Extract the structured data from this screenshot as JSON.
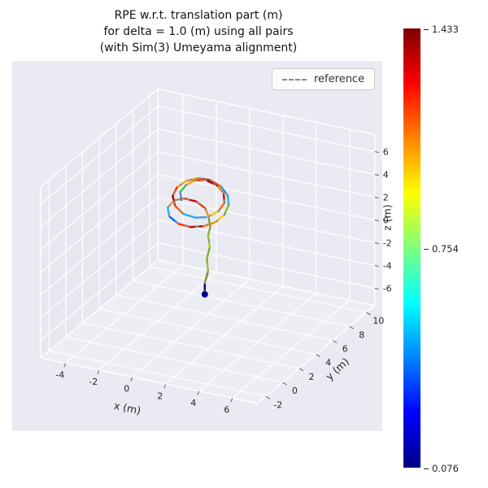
{
  "figure": {
    "background": "#ffffff",
    "axes_background": "#eaeaf2",
    "title_lines": [
      "RPE w.r.t. translation part (m)",
      "for delta = 1.0 (m) using all pairs",
      "(with Sim(3) Umeyama alignment)"
    ],
    "legend": {
      "items": [
        {
          "label": "reference",
          "line_style": "dashed",
          "color": "#8c8c8c"
        }
      ]
    },
    "axes": {
      "x": {
        "label": "x (m)",
        "ticks": [
          -4,
          -2,
          0,
          2,
          4,
          6
        ]
      },
      "y": {
        "label": "y (m)",
        "ticks": [
          -2,
          0,
          2,
          4,
          6,
          8,
          10
        ]
      },
      "z": {
        "label": "z (m)",
        "ticks": [
          6,
          4,
          2,
          0,
          -2,
          -4,
          -6
        ]
      }
    },
    "colorbar": {
      "colormap": "jet",
      "max_label": "1.433",
      "mid_label": "0.754",
      "min_label": "0.076"
    }
  },
  "chart_data": {
    "type": "line",
    "subtype": "3d-trajectory-colored-by-error",
    "title": "RPE w.r.t. translation part (m) for delta = 1.0 (m) using all pairs (with Sim(3) Umeyama alignment)",
    "xlabel": "x (m)",
    "ylabel": "y (m)",
    "zlabel": "z (m)",
    "xlim": [
      -5.5,
      7.5
    ],
    "ylim": [
      -3,
      11
    ],
    "zlim": [
      -7.5,
      7.5
    ],
    "xticks": [
      -4,
      -2,
      0,
      2,
      4,
      6
    ],
    "yticks": [
      -2,
      0,
      2,
      4,
      6,
      8,
      10
    ],
    "zticks": [
      -6,
      -4,
      -2,
      0,
      2,
      4,
      6
    ],
    "grid": true,
    "legend_position": "upper right",
    "error_range": {
      "min": 0.076,
      "mid": 0.754,
      "max": 1.433
    },
    "colormap_stops_top_to_bottom": [
      "#7f0000",
      "#ff0000",
      "#ff8400",
      "#ffff00",
      "#7dff7d",
      "#00ffff",
      "#0084ff",
      "#0000ff",
      "#000084"
    ],
    "series": [
      {
        "name": "estimate_colored_by_rpe",
        "points": [
          [
            0.55,
            4.55,
            -4.7
          ],
          [
            0.5,
            4.65,
            -3.8
          ],
          [
            0.62,
            4.8,
            -2.8
          ],
          [
            0.5,
            4.9,
            -1.8
          ],
          [
            0.62,
            5.0,
            -0.8
          ],
          [
            0.5,
            5.05,
            0.1
          ],
          [
            0.6,
            5.1,
            0.9
          ],
          [
            0.45,
            5.2,
            1.7
          ],
          [
            0.2,
            5.3,
            2.3
          ],
          [
            -0.3,
            5.2,
            2.8
          ],
          [
            -0.9,
            5.0,
            3.0
          ],
          [
            -1.4,
            4.8,
            2.8
          ],
          [
            -1.7,
            4.6,
            2.2
          ],
          [
            -1.5,
            4.4,
            1.6
          ],
          [
            -0.9,
            4.3,
            1.2
          ],
          [
            -0.2,
            4.35,
            1.1
          ],
          [
            0.5,
            4.5,
            1.3
          ],
          [
            1.1,
            4.7,
            1.7
          ],
          [
            1.5,
            5.0,
            2.3
          ],
          [
            1.6,
            5.3,
            3.0
          ],
          [
            1.4,
            5.6,
            3.6
          ],
          [
            0.9,
            5.8,
            4.1
          ],
          [
            0.2,
            5.9,
            4.4
          ],
          [
            -0.5,
            5.8,
            4.4
          ],
          [
            -1.1,
            5.6,
            4.1
          ],
          [
            -1.5,
            5.3,
            3.6
          ],
          [
            -1.6,
            5.0,
            3.0
          ],
          [
            -1.3,
            4.7,
            2.4
          ],
          [
            -0.7,
            4.5,
            2.0
          ],
          [
            0.0,
            4.5,
            1.9
          ],
          [
            0.7,
            4.6,
            2.1
          ],
          [
            1.2,
            4.9,
            2.6
          ],
          [
            1.4,
            5.2,
            3.2
          ],
          [
            1.2,
            5.5,
            3.8
          ],
          [
            0.7,
            5.7,
            4.2
          ],
          [
            0.0,
            5.75,
            4.45
          ],
          [
            -0.6,
            5.6,
            4.3
          ],
          [
            -1.0,
            5.4,
            3.9
          ],
          [
            -1.2,
            5.1,
            3.4
          ],
          [
            -1.0,
            4.85,
            2.9
          ]
        ],
        "segment_colors": [
          "#00008b",
          "#6b8e23",
          "#9acd32",
          "#76c000",
          "#a6d608",
          "#8fbc1f",
          "#65b300",
          "#ff8c00",
          "#e63900",
          "#cc0000",
          "#ff6600",
          "#ffa500",
          "#00bfff",
          "#0066ff",
          "#ff3300",
          "#b30000",
          "#ff7f00",
          "#ffd000",
          "#7ccc00",
          "#00ced1",
          "#1e90ff",
          "#ff4500",
          "#c21807",
          "#ff8c00",
          "#ffb000",
          "#ff2d00",
          "#a00000",
          "#ff5500",
          "#00bfff",
          "#2e9fff",
          "#ffcc00",
          "#ff6600",
          "#cc1100",
          "#ff8800",
          "#990000",
          "#ff3c00",
          "#ffa200",
          "#33cc33",
          "#0099ff"
        ]
      },
      {
        "name": "reference",
        "style": "dashed",
        "color": "#8c8c8c"
      }
    ],
    "start_marker": {
      "point": [
        0.55,
        4.55,
        -4.7
      ],
      "color": "#00008b"
    }
  }
}
